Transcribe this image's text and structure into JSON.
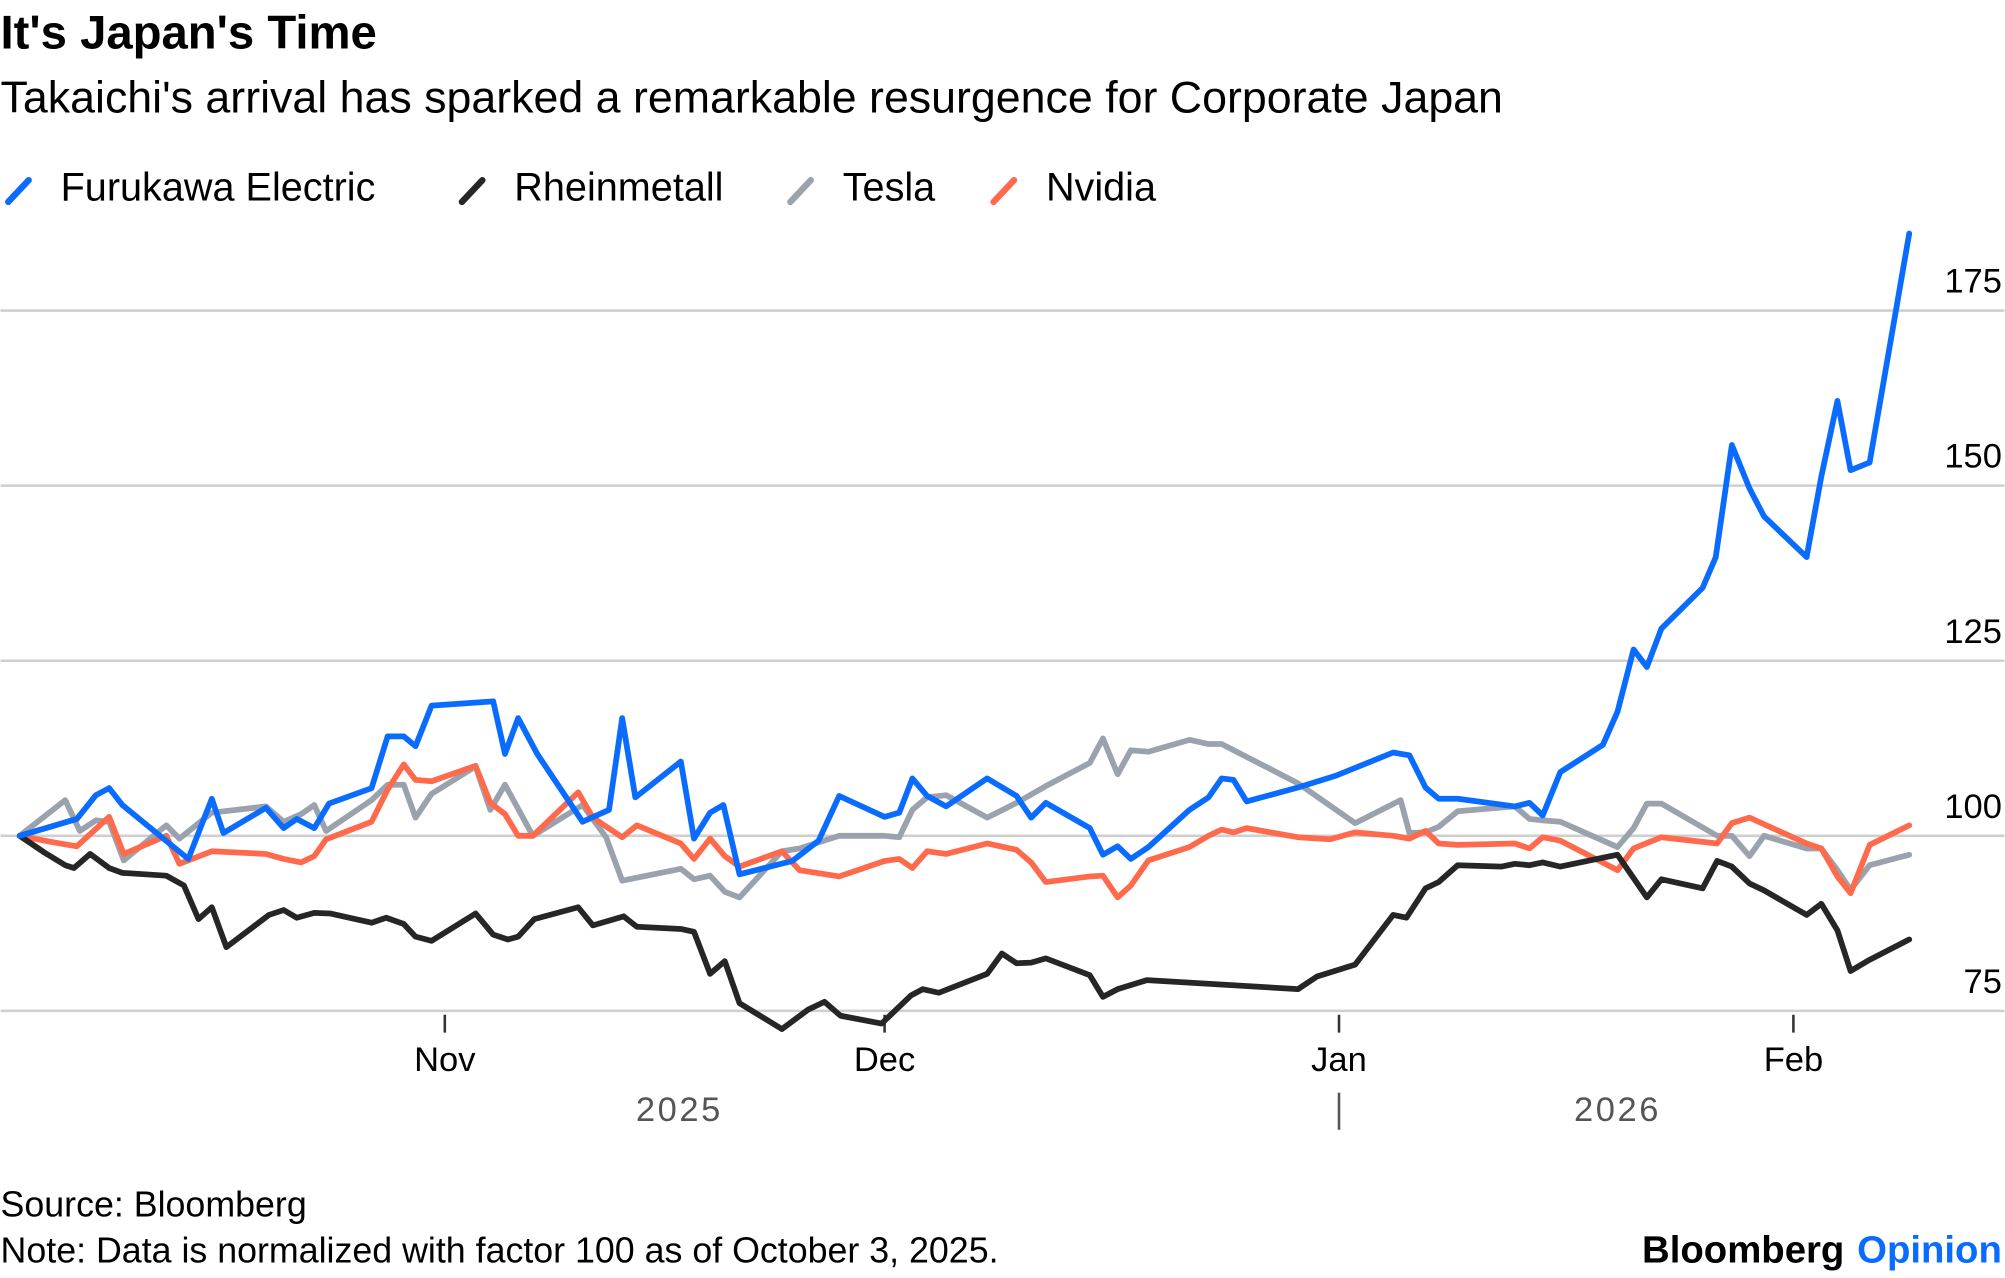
{
  "chart_data": {
    "type": "line",
    "title": "It's Japan's Time",
    "subtitle": "Takaichi's arrival has sparked a remarkable resurgence for Corporate Japan",
    "x_unit": "days since October 3, 2025",
    "xlim": [
      0,
      129
    ],
    "ylim": [
      72,
      190
    ],
    "yticks": [
      75,
      100,
      125,
      150,
      175
    ],
    "xticks": [
      {
        "label": "Nov",
        "day": 29
      },
      {
        "label": "Dec",
        "day": 59
      },
      {
        "label": "Jan",
        "day": 90
      },
      {
        "label": "Feb",
        "day": 121
      }
    ],
    "years": [
      {
        "label": "2025",
        "day": 45
      },
      {
        "label": "2026",
        "day": 109
      }
    ],
    "year_separator_day": 90,
    "legend_position": "top-left",
    "grid": true,
    "series": [
      {
        "name": "Furukawa Electric",
        "color": "#0a6cff",
        "x": [
          0,
          3.9,
          5.2,
          6.1,
          7.0,
          11.5,
          13.1,
          13.9,
          16.8,
          18.0,
          18.9,
          20.1,
          21.1,
          24.0,
          25.1,
          26.2,
          27.0,
          28.1,
          32.3,
          33.1,
          34.0,
          35.3,
          38.4,
          40.2,
          41.1,
          42.0,
          45.1,
          46.0,
          47.1,
          48.0,
          49.1,
          52.7,
          54.5,
          55.9,
          59.0,
          60.0,
          60.9,
          61.9,
          63.2,
          66.0,
          68.0,
          69.0,
          70.0,
          73.0,
          73.9,
          74.9,
          75.8,
          77.0,
          79.8,
          81.1,
          82.0,
          82.8,
          83.7,
          87.2,
          89.8,
          93.7,
          94.8,
          95.9,
          96.8,
          98.1,
          102.0,
          103.0,
          103.9,
          105.1,
          108.0,
          109.0,
          110.1,
          111.0,
          112.0,
          114.8,
          115.7,
          116.8,
          118.0,
          119.0,
          121.9,
          122.9,
          124.0,
          124.9,
          126.2,
          128.9
        ],
        "y": [
          100,
          102.4,
          105.8,
          106.8,
          104.4,
          96.7,
          105.3,
          100.4,
          104.0,
          101.1,
          102.4,
          101.1,
          104.6,
          106.8,
          114.2,
          114.2,
          112.8,
          118.6,
          119.2,
          111.7,
          116.8,
          111.7,
          102.0,
          103.7,
          116.8,
          105.5,
          110.6,
          99.6,
          103.3,
          104.4,
          94.5,
          96.4,
          99.3,
          105.7,
          102.7,
          103.3,
          108.2,
          105.7,
          104.2,
          108.2,
          105.7,
          102.6,
          104.7,
          101.1,
          97.3,
          98.5,
          96.7,
          98.4,
          103.7,
          105.5,
          108.2,
          108.0,
          104.9,
          106.9,
          108.6,
          111.9,
          111.5,
          106.9,
          105.3,
          105.3,
          104.2,
          104.7,
          102.9,
          109.1,
          113.0,
          117.7,
          126.6,
          124.1,
          129.6,
          135.4,
          139.8,
          155.8,
          149.6,
          145.6,
          139.8,
          151.3,
          162.1,
          152.2,
          153.3,
          186.0
        ]
      },
      {
        "name": "Rheinmetall",
        "color": "#262626",
        "x": [
          0,
          1.7,
          3.1,
          3.7,
          4.8,
          6.1,
          7.0,
          10.0,
          11.2,
          12.2,
          13.1,
          14.1,
          17.0,
          18.0,
          18.9,
          20.1,
          21.2,
          24.0,
          25.0,
          26.2,
          27.0,
          28.1,
          31.1,
          32.3,
          33.3,
          34.0,
          35.1,
          38.1,
          39.1,
          41.2,
          42.1,
          45.1,
          46.0,
          47.1,
          48.1,
          49.1,
          52.0,
          53.8,
          54.9,
          56.0,
          58.8,
          60.8,
          61.6,
          62.7,
          66.0,
          67.0,
          68.0,
          69.0,
          70.0,
          73.0,
          73.9,
          74.9,
          76.9,
          87.2,
          88.5,
          91.1,
          93.7,
          94.6,
          95.9,
          96.8,
          98.1,
          101.1,
          102.0,
          103.0,
          103.9,
          105.1,
          109.0,
          111.0,
          112.0,
          114.8,
          115.8,
          116.8,
          118.0,
          119.0,
          121.9,
          122.9,
          124.0,
          124.9,
          126.2,
          128.9
        ],
        "y": [
          100,
          97.6,
          95.8,
          95.4,
          97.4,
          95.4,
          94.7,
          94.3,
          92.9,
          88.1,
          89.8,
          84.1,
          88.7,
          89.4,
          88.3,
          89.0,
          88.9,
          87.6,
          88.3,
          87.4,
          85.6,
          85.0,
          88.9,
          85.9,
          85.2,
          85.6,
          88.1,
          89.8,
          87.2,
          88.5,
          87.0,
          86.7,
          86.3,
          80.3,
          82.1,
          76.1,
          72.4,
          75.2,
          76.3,
          74.3,
          73.2,
          77.2,
          78.1,
          77.6,
          80.3,
          83.2,
          81.8,
          81.9,
          82.5,
          80.1,
          77.0,
          78.1,
          79.4,
          78.1,
          79.9,
          81.6,
          88.7,
          88.3,
          92.5,
          93.4,
          95.8,
          95.6,
          96.0,
          95.8,
          96.2,
          95.6,
          97.3,
          91.2,
          93.8,
          92.5,
          96.4,
          95.6,
          93.2,
          92.2,
          88.7,
          90.3,
          86.5,
          80.7,
          82.3,
          85.2
        ]
      },
      {
        "name": "Tesla",
        "color": "#9aa3ad",
        "x": [
          0,
          3.1,
          4.1,
          5.2,
          6.1,
          7.1,
          10.0,
          10.9,
          13.1,
          16.8,
          18.0,
          19.2,
          20.1,
          20.9,
          24.0,
          25.1,
          26.2,
          27.0,
          28.1,
          31.1,
          32.1,
          33.1,
          35.0,
          38.4,
          40.0,
          41.1,
          45.1,
          46.0,
          47.1,
          48.1,
          49.1,
          52.0,
          53.2,
          55.9,
          59.0,
          60.0,
          60.9,
          61.9,
          63.2,
          66.0,
          68.0,
          70.0,
          73.0,
          73.9,
          74.9,
          75.8,
          77.0,
          79.8,
          81.1,
          82.0,
          87.2,
          91.1,
          94.2,
          94.8,
          95.9,
          96.8,
          98.1,
          102.0,
          103.0,
          103.9,
          105.1,
          109.0,
          110.1,
          111.0,
          112.0,
          115.8,
          116.8,
          118.0,
          119.0,
          121.9,
          122.9,
          124.0,
          124.9,
          126.2,
          128.9
        ],
        "y": [
          100,
          105.1,
          100.7,
          102.2,
          102.0,
          96.5,
          101.5,
          99.6,
          103.3,
          104.2,
          102.0,
          103.1,
          104.4,
          100.7,
          105.1,
          107.3,
          107.3,
          102.6,
          106.0,
          109.9,
          103.7,
          107.3,
          100,
          104.4,
          99.8,
          93.6,
          95.3,
          93.8,
          94.3,
          92.0,
          91.2,
          97.8,
          98.2,
          100,
          100,
          99.8,
          103.7,
          105.5,
          105.8,
          102.6,
          104.7,
          107.1,
          110.4,
          113.9,
          108.8,
          112.2,
          112.0,
          113.7,
          113.1,
          113.1,
          107.5,
          101.8,
          105.1,
          100.4,
          100.5,
          101.3,
          103.5,
          104.2,
          102.4,
          102.2,
          102.0,
          98.4,
          101.1,
          104.6,
          104.6,
          100,
          100,
          97.1,
          100,
          98.2,
          98.2,
          95.1,
          92.3,
          95.8,
          97.3
        ]
      },
      {
        "name": "Nvidia",
        "color": "#ff6a4d",
        "x": [
          0,
          2.2,
          3.9,
          6.1,
          7.1,
          10.0,
          10.9,
          13.1,
          16.8,
          18.0,
          19.2,
          20.1,
          20.9,
          24.0,
          25.1,
          26.2,
          27.0,
          28.1,
          31.1,
          32.1,
          33.1,
          34.0,
          35.0,
          38.1,
          39.1,
          41.1,
          42.1,
          45.1,
          46.0,
          47.1,
          48.1,
          49.1,
          52.0,
          53.2,
          55.9,
          59.0,
          60.0,
          60.9,
          61.9,
          63.2,
          66.0,
          68.0,
          69.0,
          70.0,
          73.0,
          73.9,
          74.9,
          75.8,
          77.0,
          79.8,
          81.1,
          82.0,
          82.8,
          83.7,
          87.2,
          89.4,
          91.1,
          93.7,
          94.8,
          95.9,
          96.8,
          98.1,
          102.0,
          103.0,
          103.9,
          105.1,
          109.0,
          110.1,
          112.0,
          115.8,
          116.8,
          118.0,
          121.9,
          122.9,
          124.0,
          124.9,
          126.2,
          128.9
        ],
        "y": [
          100,
          99.1,
          98.5,
          102.7,
          97.4,
          100,
          96.0,
          97.8,
          97.4,
          96.7,
          96.2,
          97.1,
          99.5,
          102.0,
          106.6,
          110.2,
          108.0,
          107.8,
          110.0,
          104.7,
          103.1,
          100,
          100,
          106.2,
          102.6,
          99.8,
          101.5,
          98.9,
          96.7,
          99.6,
          97.1,
          95.6,
          97.8,
          95.1,
          94.2,
          96.4,
          96.7,
          95.4,
          97.8,
          97.4,
          98.9,
          98.0,
          96.2,
          93.4,
          94.2,
          94.3,
          91.2,
          92.9,
          96.5,
          98.4,
          100,
          100.9,
          100.5,
          101.1,
          99.8,
          99.5,
          100.5,
          100,
          99.6,
          100.7,
          98.9,
          98.7,
          98.9,
          98.2,
          99.8,
          99.3,
          95.1,
          98.2,
          99.8,
          98.9,
          101.8,
          102.6,
          98.9,
          98.2,
          94.2,
          91.8,
          98.7,
          101.5
        ]
      }
    ],
    "source": "Source: Bloomberg",
    "note": "Note: Data is normalized with factor 100 as of October 3, 2025.",
    "brand": {
      "name": "Bloomberg",
      "suffix": "Opinion",
      "suffix_color": "#0a6cff"
    }
  }
}
